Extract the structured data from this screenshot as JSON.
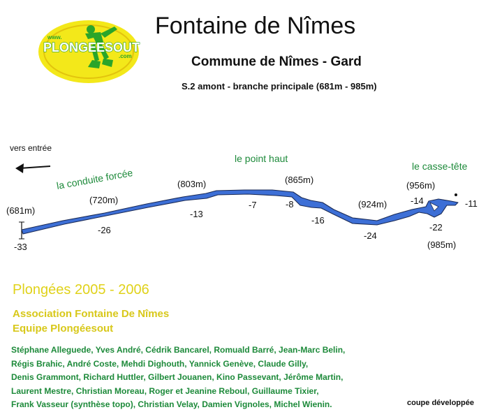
{
  "header": {
    "title": "Fontaine de Nîmes",
    "subtitle": "Commune de Nîmes - Gard",
    "section": "S.2 amont - branche principale (681m - 985m)"
  },
  "logo": {
    "www": "www.",
    "brand": "PLONGEESOUT",
    "tld": ".com"
  },
  "diagram": {
    "labels": {
      "entrance": "vers entrée",
      "conduit": "la conduite forcée",
      "high_point": "le point haut",
      "puzzle": "le casse-tête"
    },
    "distances": [
      "(681m)",
      "(720m)",
      "(803m)",
      "(865m)",
      "(924m)",
      "(956m)",
      "(985m)"
    ],
    "depths": [
      "-33",
      "-26",
      "-13",
      "-7",
      "-8",
      "-16",
      "-24",
      "-14",
      "-22",
      "-11"
    ]
  },
  "info": {
    "dives": "Plongées 2005 - 2006",
    "association": "Association Fontaine De Nîmes",
    "team": "Equipe Plongéesout",
    "members": [
      "Stéphane Alleguede, Yves André, Cédrik Bancarel, Romuald Barré, Jean-Marc Belin,",
      "Régis Brahic, André Coste, Mehdi Dighouth, Yannick Genève, Claude Gilly,",
      "Denis Grammont, Richard Huttler, Gilbert Jouanen, Kino Passevant, Jérôme Martin,",
      "Laurent Mestre, Christian Moreau,  Roger et Jeanine Reboul, Guillaume Tixier,",
      "Frank Vasseur (synthèse topo), Christian Velay, Damien Vignoles, Michel Wienin."
    ],
    "caption": "coupe développée"
  },
  "colors": {
    "passage": "#3d6fd6",
    "outline": "#1a2a55",
    "green": "#1d8a3a",
    "gold": "#e0d21a",
    "logo_yellow": "#f3e81a",
    "logo_green": "#2aa52a"
  }
}
